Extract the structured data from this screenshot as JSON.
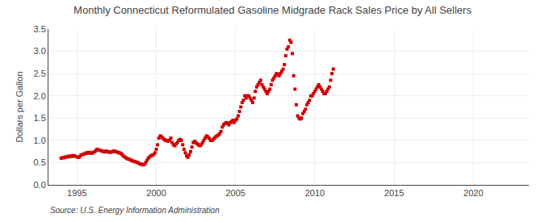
{
  "chart_data": {
    "type": "scatter",
    "title": "Monthly Connecticut Reformulated Gasoline Midgrade Rack Sales Price by All Sellers",
    "ylabel": "Dollars per Gallon",
    "annotations": [
      "Source: U.S. Energy Information Administration"
    ],
    "color": "#cc0000",
    "marker": "square",
    "grid": true,
    "xlim": [
      1993.2,
      2023.5
    ],
    "ylim": [
      0.0,
      3.5
    ],
    "xticks": [
      1995,
      2000,
      2005,
      2010,
      2015,
      2020
    ],
    "yticks": [
      {
        "value": 0.0,
        "label": "0.0"
      },
      0.5,
      {
        "value": 1.0,
        "label": "1.0"
      },
      1.5,
      {
        "value": 2.0,
        "label": "2.0"
      },
      2.5,
      {
        "value": 3.0,
        "label": "3.0"
      },
      3.5
    ],
    "x": [
      1994.0,
      1994.083,
      1994.167,
      1994.25,
      1994.333,
      1994.417,
      1994.5,
      1994.583,
      1994.667,
      1994.75,
      1994.833,
      1994.917,
      1995.0,
      1995.083,
      1995.167,
      1995.25,
      1995.333,
      1995.417,
      1995.5,
      1995.583,
      1995.667,
      1995.75,
      1995.833,
      1995.917,
      1996.0,
      1996.083,
      1996.167,
      1996.25,
      1996.333,
      1996.417,
      1996.5,
      1996.583,
      1996.667,
      1996.75,
      1996.833,
      1996.917,
      1997.0,
      1997.083,
      1997.167,
      1997.25,
      1997.333,
      1997.417,
      1997.5,
      1997.583,
      1997.667,
      1997.75,
      1997.833,
      1997.917,
      1998.0,
      1998.083,
      1998.167,
      1998.25,
      1998.333,
      1998.417,
      1998.5,
      1998.583,
      1998.667,
      1998.75,
      1998.833,
      1998.917,
      1999.0,
      1999.083,
      1999.167,
      1999.25,
      1999.333,
      1999.417,
      1999.5,
      1999.583,
      1999.667,
      1999.75,
      1999.833,
      1999.917,
      2000.0,
      2000.083,
      2000.167,
      2000.25,
      2000.333,
      2000.417,
      2000.5,
      2000.583,
      2000.667,
      2000.75,
      2000.833,
      2000.917,
      2001.0,
      2001.083,
      2001.167,
      2001.25,
      2001.333,
      2001.417,
      2001.5,
      2001.583,
      2001.667,
      2001.75,
      2001.833,
      2001.917,
      2002.0,
      2002.083,
      2002.167,
      2002.25,
      2002.333,
      2002.417,
      2002.5,
      2002.583,
      2002.667,
      2002.75,
      2002.833,
      2002.917,
      2003.0,
      2003.083,
      2003.167,
      2003.25,
      2003.333,
      2003.417,
      2003.5,
      2003.583,
      2003.667,
      2003.75,
      2003.833,
      2003.917,
      2004.0,
      2004.083,
      2004.167,
      2004.25,
      2004.333,
      2004.417,
      2004.5,
      2004.583,
      2004.667,
      2004.75,
      2004.833,
      2004.917,
      2005.0,
      2005.083,
      2005.167,
      2005.25,
      2005.333,
      2005.417,
      2005.5,
      2005.583,
      2005.667,
      2005.75,
      2005.833,
      2005.917,
      2006.0,
      2006.083,
      2006.167,
      2006.25,
      2006.333,
      2006.417,
      2006.5,
      2006.583,
      2006.667,
      2006.75,
      2006.833,
      2006.917,
      2007.0,
      2007.083,
      2007.167,
      2007.25,
      2007.333,
      2007.417,
      2007.5,
      2007.583,
      2007.667,
      2007.75,
      2007.833,
      2007.917,
      2008.0,
      2008.083,
      2008.167,
      2008.25,
      2008.333,
      2008.417,
      2008.5,
      2008.583,
      2008.667,
      2008.75,
      2008.833,
      2008.917,
      2009.0,
      2009.083,
      2009.167,
      2009.25,
      2009.333,
      2009.417,
      2009.5,
      2009.583,
      2009.667,
      2009.75,
      2009.833,
      2009.917,
      2010.0,
      2010.083,
      2010.167,
      2010.25,
      2010.333,
      2010.417,
      2010.5,
      2010.583,
      2010.667,
      2010.75,
      2010.833,
      2010.917,
      2011.0,
      2011.083,
      2011.167
    ],
    "values": [
      0.6,
      0.61,
      0.61,
      0.62,
      0.63,
      0.64,
      0.63,
      0.65,
      0.64,
      0.66,
      0.65,
      0.64,
      0.63,
      0.62,
      0.63,
      0.67,
      0.68,
      0.69,
      0.7,
      0.72,
      0.71,
      0.73,
      0.72,
      0.71,
      0.72,
      0.74,
      0.76,
      0.8,
      0.79,
      0.78,
      0.77,
      0.76,
      0.75,
      0.74,
      0.76,
      0.75,
      0.74,
      0.73,
      0.74,
      0.75,
      0.76,
      0.75,
      0.74,
      0.73,
      0.72,
      0.71,
      0.69,
      0.65,
      0.63,
      0.61,
      0.59,
      0.58,
      0.57,
      0.55,
      0.54,
      0.53,
      0.52,
      0.51,
      0.5,
      0.48,
      0.47,
      0.46,
      0.45,
      0.46,
      0.5,
      0.55,
      0.6,
      0.63,
      0.65,
      0.67,
      0.68,
      0.72,
      0.8,
      0.9,
      1.05,
      1.1,
      1.08,
      1.05,
      1.02,
      1.0,
      1.0,
      0.98,
      1.0,
      1.05,
      0.95,
      0.9,
      0.88,
      0.92,
      0.95,
      1.0,
      1.02,
      1.0,
      0.9,
      0.8,
      0.72,
      0.65,
      0.62,
      0.68,
      0.75,
      0.85,
      0.95,
      0.98,
      0.95,
      0.92,
      0.9,
      0.88,
      0.9,
      0.95,
      1.0,
      1.05,
      1.1,
      1.08,
      1.05,
      1.0,
      1.0,
      1.02,
      1.05,
      1.08,
      1.1,
      1.12,
      1.15,
      1.2,
      1.3,
      1.35,
      1.38,
      1.4,
      1.38,
      1.35,
      1.4,
      1.42,
      1.45,
      1.4,
      1.45,
      1.48,
      1.55,
      1.65,
      1.75,
      1.85,
      1.9,
      2.0,
      1.95,
      2.0,
      2.0,
      1.95,
      1.9,
      1.85,
      1.95,
      2.1,
      2.2,
      2.25,
      2.3,
      2.35,
      2.25,
      2.2,
      2.15,
      2.1,
      2.05,
      2.1,
      2.15,
      2.25,
      2.35,
      2.4,
      2.45,
      2.5,
      2.48,
      2.45,
      2.5,
      2.55,
      2.6,
      2.7,
      2.9,
      3.05,
      3.1,
      3.25,
      3.2,
      2.95,
      2.45,
      2.15,
      1.8,
      1.55,
      1.5,
      1.48,
      1.5,
      1.6,
      1.65,
      1.7,
      1.8,
      1.85,
      1.9,
      2.0,
      2.0,
      2.05,
      2.1,
      2.15,
      2.2,
      2.25,
      2.2,
      2.15,
      2.1,
      2.05,
      2.05,
      2.1,
      2.15,
      2.2,
      2.35,
      2.5,
      2.6
    ]
  }
}
